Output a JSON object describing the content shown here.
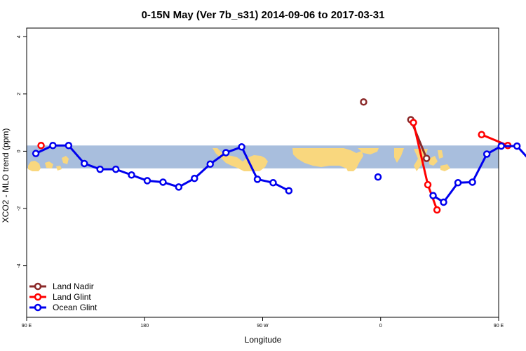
{
  "chart_data": {
    "type": "line",
    "title": "0-15N May (Ver 7b_s31)   2014-09-06 to 2017-03-31",
    "xlabel": "Longitude",
    "ylabel": "XCO2 - MLO trend (ppm)",
    "xlim": [
      90,
      450
    ],
    "ylim": [
      -5.8,
      4.3
    ],
    "x_ticks": [
      {
        "value": 90,
        "label": "90 E"
      },
      {
        "value": 180,
        "label": "180"
      },
      {
        "value": 270,
        "label": "90 W"
      },
      {
        "value": 360,
        "label": "0"
      },
      {
        "value": 450,
        "label": "90 E"
      },
      {
        "value": 540,
        "label": "180"
      }
    ],
    "y_ticks": [
      {
        "value": 4,
        "label": "4"
      },
      {
        "value": 2,
        "label": "2"
      },
      {
        "value": 0,
        "label": "0"
      },
      {
        "value": -2,
        "label": "-2"
      },
      {
        "value": -4,
        "label": "-4"
      }
    ],
    "band": {
      "ymin": -0.6,
      "ymax": 0.2,
      "color": "#a8bedd"
    },
    "land_color": "#f9d77e",
    "legend_position": "bottom-left",
    "series": [
      {
        "name": "Land Nadir",
        "color": "#8b2a2a",
        "segments": [
          [
            {
              "x": 347,
              "y": 1.72
            }
          ],
          [
            {
              "x": 383,
              "y": 1.1
            },
            {
              "x": 395,
              "y": -0.25
            }
          ]
        ]
      },
      {
        "name": "Land Glint",
        "color": "#ff0000",
        "segments": [
          [
            {
              "x": 101,
              "y": 0.2
            }
          ],
          [
            {
              "x": 385,
              "y": 1.0
            },
            {
              "x": 396,
              "y": -1.17
            },
            {
              "x": 403,
              "y": -2.05
            }
          ],
          [
            {
              "x": 437,
              "y": 0.58
            },
            {
              "x": 457,
              "y": 0.2
            }
          ]
        ]
      },
      {
        "name": "Ocean Glint",
        "color": "#0000ee",
        "segments": [
          [
            {
              "x": 97,
              "y": -0.08
            },
            {
              "x": 110,
              "y": 0.2
            },
            {
              "x": 122,
              "y": 0.2
            },
            {
              "x": 134,
              "y": -0.43
            },
            {
              "x": 146,
              "y": -0.63
            },
            {
              "x": 158,
              "y": -0.63
            },
            {
              "x": 170,
              "y": -0.83
            },
            {
              "x": 182,
              "y": -1.03
            },
            {
              "x": 194,
              "y": -1.08
            },
            {
              "x": 206,
              "y": -1.25
            },
            {
              "x": 218,
              "y": -0.95
            },
            {
              "x": 230,
              "y": -0.45
            },
            {
              "x": 242,
              "y": -0.05
            },
            {
              "x": 254,
              "y": 0.15
            },
            {
              "x": 266,
              "y": -0.98
            },
            {
              "x": 278,
              "y": -1.1
            },
            {
              "x": 290,
              "y": -1.38
            }
          ],
          [
            {
              "x": 358,
              "y": -0.9
            }
          ],
          [
            {
              "x": 400,
              "y": -1.55
            },
            {
              "x": 408,
              "y": -1.78
            },
            {
              "x": 419,
              "y": -1.1
            },
            {
              "x": 430,
              "y": -1.08
            },
            {
              "x": 441,
              "y": -0.1
            },
            {
              "x": 452,
              "y": 0.18
            },
            {
              "x": 464,
              "y": 0.18
            },
            {
              "x": 476,
              "y": -0.43
            },
            {
              "x": 488,
              "y": -0.63
            },
            {
              "x": 500,
              "y": -0.63
            }
          ]
        ]
      }
    ]
  }
}
